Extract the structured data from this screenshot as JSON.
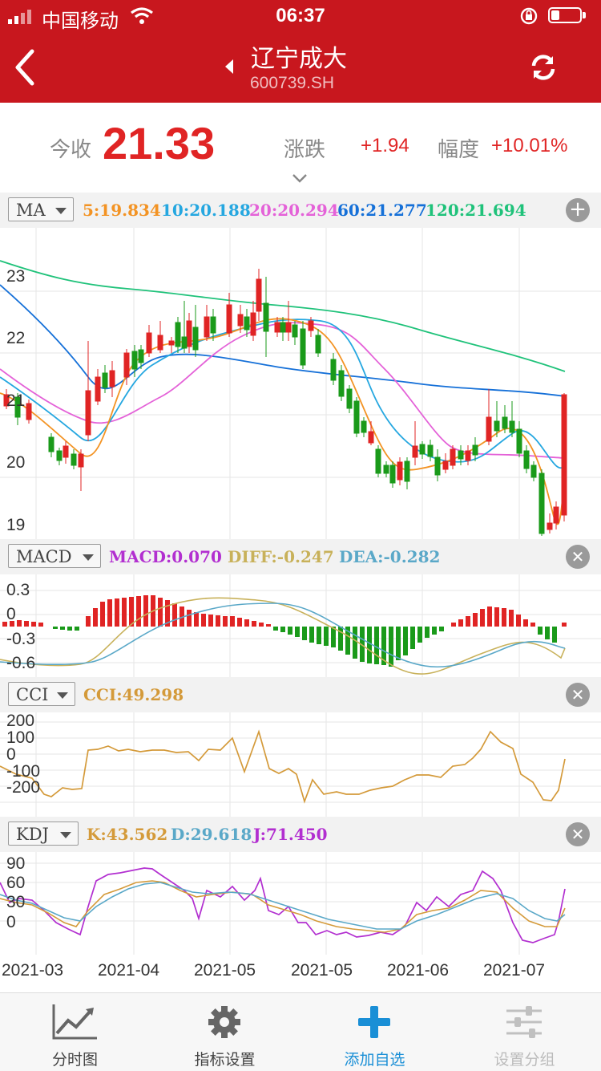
{
  "status_bar": {
    "carrier": "中国移动",
    "time": "06:37"
  },
  "nav": {
    "stock_name": "辽宁成大",
    "stock_code": "600739.SH"
  },
  "quote": {
    "close_label": "今收",
    "close_price": "21.33",
    "change_label": "涨跌",
    "change_value": "+1.94",
    "amp_label": "幅度",
    "amp_value": "+10.01%"
  },
  "colors": {
    "header_red": "#c8171e",
    "up": "#e02424",
    "down": "#1a9a1a",
    "accent_blue": "#1a8fd6"
  },
  "ma_panel": {
    "selector": "MA",
    "indicators": [
      {
        "text": "5:19.834",
        "color": "#f39323"
      },
      {
        "text": "10:20.188",
        "color": "#25a7e0"
      },
      {
        "text": "20:20.294",
        "color": "#e462d8"
      },
      {
        "text": "60:21.277",
        "color": "#1570d8"
      },
      {
        "text": "120:21.694",
        "color": "#1fc27a"
      }
    ],
    "y_ticks": [
      "23",
      "22",
      "21",
      "20",
      "19"
    ]
  },
  "macd_panel": {
    "selector": "MACD",
    "indicators": [
      {
        "text": "MACD:0.070",
        "color": "#b22fd0"
      },
      {
        "text": "DIFF:-0.247",
        "color": "#c8b15a"
      },
      {
        "text": "DEA:-0.282",
        "color": "#5aa8c8"
      }
    ],
    "y_ticks": [
      "0.3",
      "0",
      "-0.3",
      "-0.6"
    ]
  },
  "cci_panel": {
    "selector": "CCI",
    "indicators": [
      {
        "text": "CCI:49.298",
        "color": "#d49a3a"
      }
    ],
    "y_ticks": [
      "200",
      "100",
      "0",
      "-100",
      "-200"
    ]
  },
  "kdj_panel": {
    "selector": "KDJ",
    "indicators": [
      {
        "text": "K:43.562",
        "color": "#d49a3a"
      },
      {
        "text": "D:29.618",
        "color": "#5aa8c8"
      },
      {
        "text": "J:71.450",
        "color": "#b22fd0"
      }
    ],
    "y_ticks": [
      "90",
      "60",
      "30",
      "0"
    ]
  },
  "x_axis": [
    "2021-03",
    "2021-04",
    "2021-05",
    "2021-05",
    "2021-06",
    "2021-07"
  ],
  "tabs": [
    {
      "label": "分时图",
      "icon": "line-chart-icon",
      "active": false
    },
    {
      "label": "指标设置",
      "icon": "gear-icon",
      "active": false
    },
    {
      "label": "添加自选",
      "icon": "plus-icon",
      "active": true
    },
    {
      "label": "设置分组",
      "icon": "sliders-icon",
      "active": false,
      "disabled": true
    }
  ]
}
